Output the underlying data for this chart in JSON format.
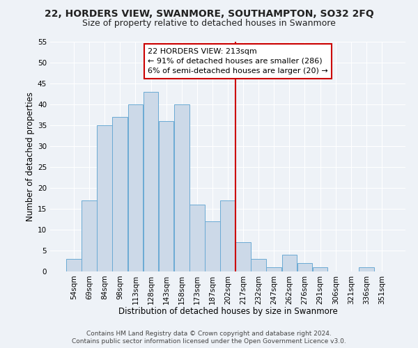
{
  "title": "22, HORDERS VIEW, SWANMORE, SOUTHAMPTON, SO32 2FQ",
  "subtitle": "Size of property relative to detached houses in Swanmore",
  "xlabel": "Distribution of detached houses by size in Swanmore",
  "ylabel": "Number of detached properties",
  "bar_labels": [
    "54sqm",
    "69sqm",
    "84sqm",
    "98sqm",
    "113sqm",
    "128sqm",
    "143sqm",
    "158sqm",
    "173sqm",
    "187sqm",
    "202sqm",
    "217sqm",
    "232sqm",
    "247sqm",
    "262sqm",
    "276sqm",
    "291sqm",
    "306sqm",
    "321sqm",
    "336sqm",
    "351sqm"
  ],
  "bar_heights": [
    3,
    17,
    35,
    37,
    40,
    43,
    36,
    40,
    16,
    12,
    17,
    7,
    3,
    1,
    4,
    2,
    1,
    0,
    0,
    1,
    0
  ],
  "bar_color": "#ccd9e8",
  "bar_edge_color": "#6aaad4",
  "vline_x": 10.5,
  "vline_color": "#cc0000",
  "annotation_text": "22 HORDERS VIEW: 213sqm\n← 91% of detached houses are smaller (286)\n6% of semi-detached houses are larger (20) →",
  "annotation_box_color": "#ffffff",
  "annotation_box_edge_color": "#cc0000",
  "ylim": [
    0,
    55
  ],
  "yticks": [
    0,
    5,
    10,
    15,
    20,
    25,
    30,
    35,
    40,
    45,
    50,
    55
  ],
  "footer1": "Contains HM Land Registry data © Crown copyright and database right 2024.",
  "footer2": "Contains public sector information licensed under the Open Government Licence v3.0.",
  "background_color": "#eef2f7",
  "grid_color": "#ffffff",
  "title_fontsize": 10,
  "subtitle_fontsize": 9,
  "axis_label_fontsize": 8.5,
  "tick_fontsize": 7.5,
  "footer_fontsize": 6.5,
  "annotation_fontsize": 8
}
